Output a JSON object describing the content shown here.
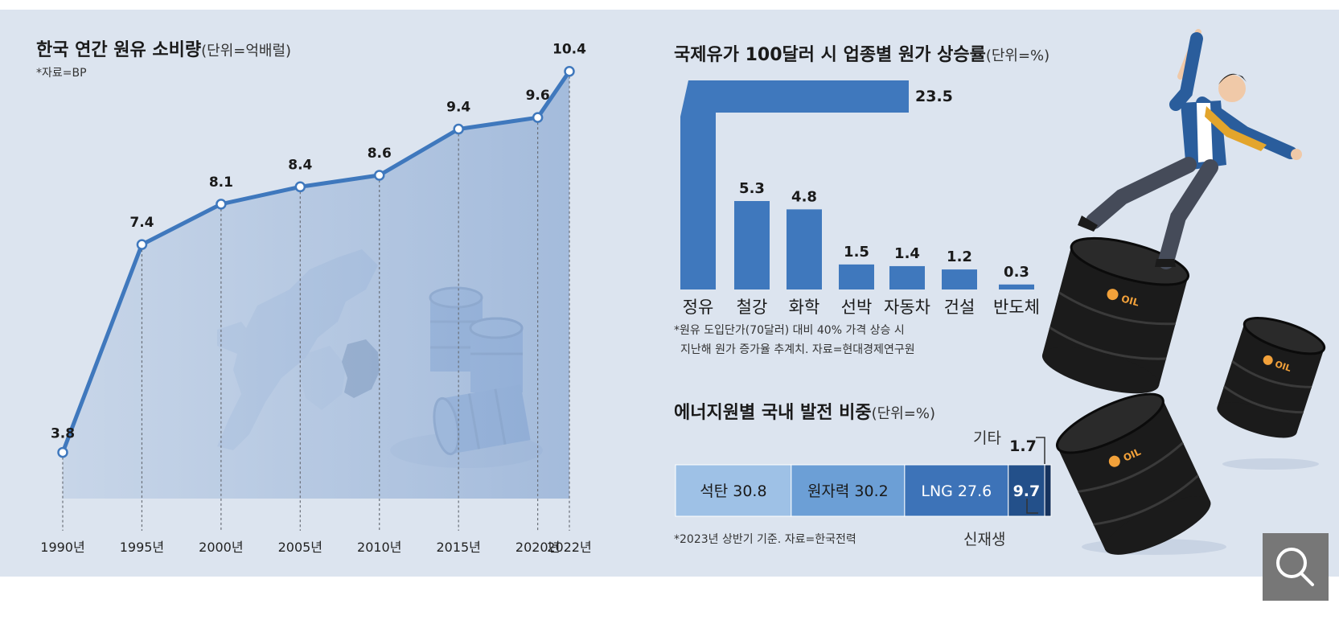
{
  "left_chart": {
    "title": "한국 연간 원유 소비량",
    "unit": "(단위=억배럴)",
    "source": "*자료=BP"
  },
  "right_top": {
    "title": "국제유가 100달러 시 업종별 원가 상승률",
    "unit": "(단위=%)",
    "footnote_1": "*원유 도입단가(70달러) 대비 40% 가격 상승 시",
    "footnote_2": "지난해 원가 증가율 추계치. 자료=현대경제연구원"
  },
  "right_bottom": {
    "title": "에너지원별 국내 발전 비중",
    "unit": "(단위=%)",
    "label_other": "기타",
    "label_renewable": "신재생",
    "footnote": "*2023년 상반기 기준. 자료=한국전력"
  },
  "colors": {
    "panel": "#dce4ef",
    "line": "#3f78bd",
    "bar": "#3f78bd",
    "seg_coal": "#9ec1e6",
    "seg_nuclear": "#6c9fd6",
    "seg_lng": "#3d73b8",
    "seg_renew": "#23508a",
    "seg_other": "#16335e",
    "barrel_dark": "#1b1b1b",
    "barrel_orange": "#f2a13a"
  },
  "chart_data": [
    {
      "type": "line",
      "x": [
        "1990년",
        "1995년",
        "2000년",
        "2005년",
        "2010년",
        "2015년",
        "2020년",
        "2022년"
      ],
      "years": [
        1990,
        1995,
        2000,
        2005,
        2010,
        2015,
        2020,
        2022
      ],
      "values": [
        3.8,
        7.4,
        8.1,
        8.4,
        8.6,
        9.4,
        9.6,
        10.4
      ],
      "labels": [
        "3.8",
        "7.4",
        "8.1",
        "8.4",
        "8.6",
        "9.4",
        "9.6",
        "10.4"
      ],
      "title": "한국 연간 원유 소비량",
      "ylim": [
        3.0,
        10.8
      ]
    },
    {
      "type": "bar",
      "categories": [
        "정유",
        "철강",
        "화학",
        "선박",
        "자동차",
        "건설",
        "반도체"
      ],
      "values": [
        23.5,
        5.3,
        4.8,
        1.5,
        1.4,
        1.2,
        0.3
      ],
      "labels": [
        "23.5",
        "5.3",
        "4.8",
        "1.5",
        "1.4",
        "1.2",
        "0.3"
      ],
      "title": "국제유가 100달러 시 업종별 원가 상승률"
    },
    {
      "type": "bar",
      "stacked": true,
      "categories": [
        "석탄",
        "원자력",
        "LNG",
        "신재생",
        "기타"
      ],
      "values": [
        30.8,
        30.2,
        27.6,
        9.7,
        1.7
      ],
      "labels": [
        "석탄 30.8",
        "원자력 30.2",
        "LNG 27.6",
        "9.7",
        "1.7"
      ],
      "title": "에너지원별 국내 발전 비중"
    }
  ]
}
